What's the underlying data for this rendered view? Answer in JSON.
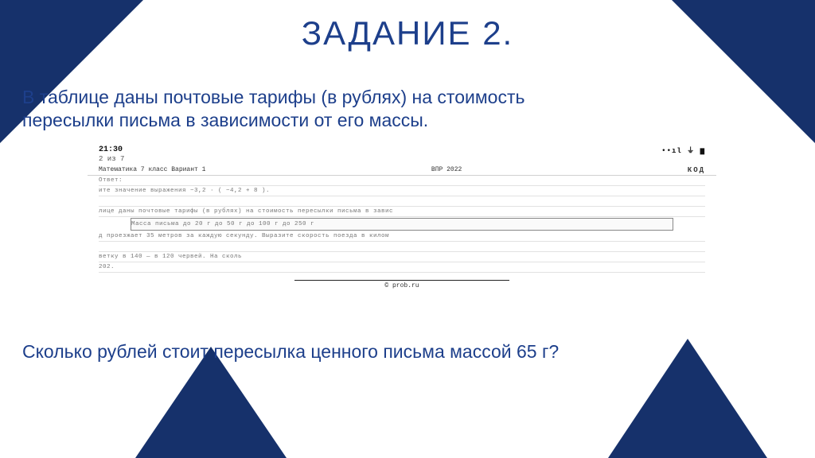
{
  "title": "ЗАДАНИЕ 2.",
  "paragraph1_line1": "В таблице даны почтовые тарифы (в рублях) на стоимость",
  "paragraph1_line2": "пересылки письма в зависимости от его массы.",
  "paragraph2": "Сколько рублей стоит пересылка ценного письма массой 65 г?",
  "embedded": {
    "time": "21:30",
    "pager": "2 из 7",
    "exam": "ВПР 2022",
    "kod": "КОД",
    "subject": "Математика   7 класс   Вариант 1",
    "row_a": "Ответ:",
    "row_b": "ите значение выражения  −3,2 · ( −4,2 + 8 ).",
    "row_c": "лице даны почтовые тарифы (в рублях) на стоимость пересылки письма в завис",
    "row_box": "Масса письма                  до 20 г           до 50 г           до 100 г          до 250 г",
    "row_d": "д проезжает 35 метров за каждую секунду. Выразите скорость поезда в килом",
    "row_e": "ветку          в 140          —  в 120          червей. На          сколь",
    "row_f": "202.",
    "footer": "© prob.ru"
  },
  "colors": {
    "navy": "#16316b",
    "heading": "#1d3f8b",
    "background": "#ffffff"
  }
}
